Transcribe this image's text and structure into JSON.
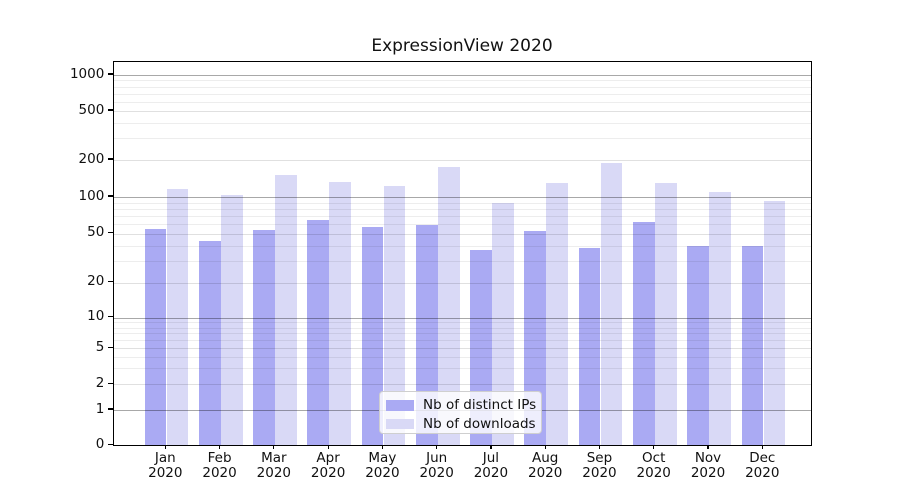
{
  "chart_data": {
    "type": "bar",
    "title": "ExpressionView 2020",
    "x_tick_months": [
      "Jan",
      "Feb",
      "Mar",
      "Apr",
      "May",
      "Jun",
      "Jul",
      "Aug",
      "Sep",
      "Oct",
      "Nov",
      "Dec"
    ],
    "x_tick_year": "2020",
    "y_axis": {
      "scale": "symlog",
      "tick_labels": [
        "1000",
        "500",
        "200",
        "100",
        "50",
        "20",
        "10",
        "5",
        "2",
        "1",
        "0"
      ],
      "tick_values": [
        1000,
        500,
        200,
        100,
        50,
        20,
        10,
        5,
        2,
        1,
        0
      ],
      "minor_gridline_values": [
        3,
        4,
        6,
        7,
        8,
        9,
        30,
        40,
        60,
        70,
        80,
        90,
        300,
        400,
        600,
        700,
        800,
        900
      ]
    },
    "series": [
      {
        "name": "Nb of distinct IPs",
        "color": "#aaaaf3",
        "values": [
          55,
          44,
          54,
          65,
          57,
          59,
          37,
          53,
          38,
          62,
          40,
          40
        ]
      },
      {
        "name": "Nb of downloads",
        "color": "#d9d9f6",
        "values": [
          117,
          104,
          152,
          133,
          124,
          175,
          90,
          129,
          188,
          129,
          110,
          92
        ]
      }
    ],
    "legend": {
      "position": "lower center",
      "labels": [
        "Nb of distinct IPs",
        "Nb of downloads"
      ]
    },
    "grid": true,
    "xlabel": "",
    "ylabel": ""
  }
}
